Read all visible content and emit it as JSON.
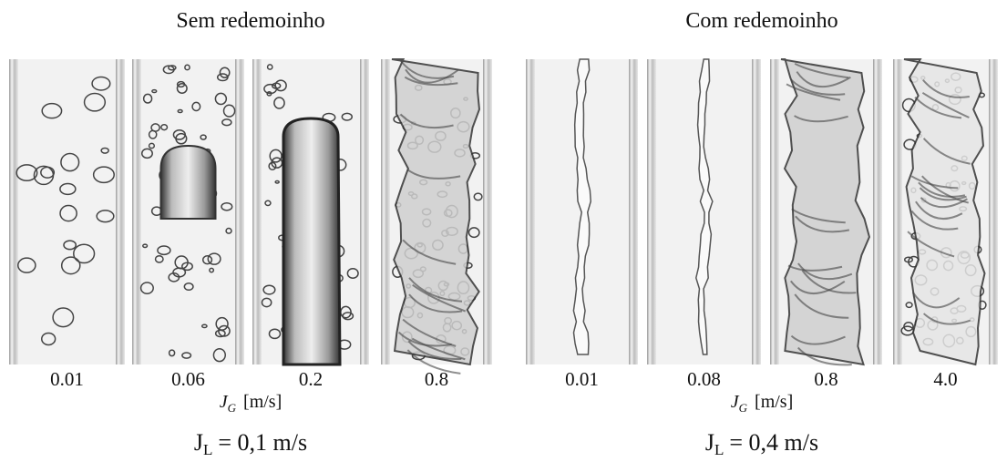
{
  "panels": [
    {
      "title": "Sem redemoinho",
      "labels": [
        "0.01",
        "0.06",
        "0.2",
        "0.8"
      ],
      "axis_label": {
        "symbol": "J",
        "subscript": "G",
        "unit": "[m/s]"
      },
      "condition": {
        "symbol": "J",
        "subscript": "L",
        "rest": "= 0,1 m/s"
      }
    },
    {
      "title": "Com redemoinho",
      "labels": [
        "0.01",
        "0.08",
        "0.8",
        "4.0"
      ],
      "axis_label": {
        "symbol": "J",
        "subscript": "G",
        "unit": "[m/s]"
      },
      "condition": {
        "symbol": "J",
        "subscript": "L",
        "rest": "= 0,4 m/s"
      }
    }
  ]
}
